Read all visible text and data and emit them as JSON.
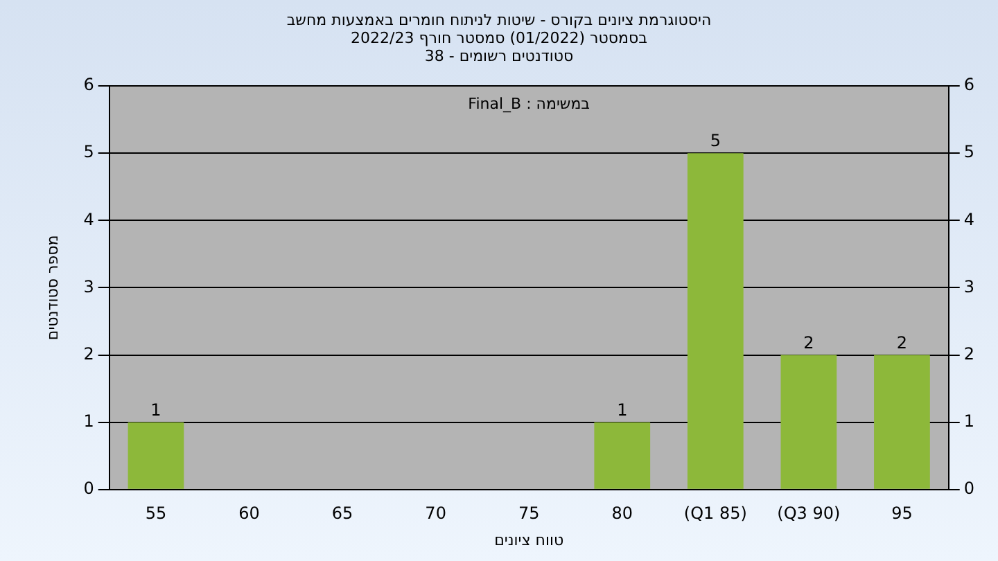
{
  "chart_data": {
    "type": "bar",
    "title": "היסטוגרמת ציונים בקורס - שיטות לניתוח חומרים באמצעות מחשב",
    "subtitle": "בסמסטר (01/2022) סמסטר חורף 2022/23\nסטודנטים רשומים - 38",
    "xlabel": "טווח ציונים",
    "ylabel": "מספר סטודנטים",
    "categories": [
      "55",
      "60",
      "65",
      "70",
      "75",
      "80",
      "(Q1 85)",
      "(Q3 90)",
      "95"
    ],
    "values": [
      1,
      0,
      0,
      0,
      0,
      1,
      5,
      2,
      2
    ],
    "value_labels": [
      "1",
      null,
      null,
      null,
      null,
      "1",
      "5",
      "2",
      "2"
    ],
    "color": "#8db83a",
    "ylim": [
      0,
      6
    ],
    "yticks": [
      0,
      1,
      2,
      3,
      4,
      5,
      6
    ],
    "y2lim": [
      0,
      6
    ],
    "y2ticks": [
      0,
      1,
      2,
      3,
      4,
      5,
      6
    ],
    "grid": "y",
    "legend": false,
    "annotations": [
      "במשימה : Final_B"
    ]
  }
}
